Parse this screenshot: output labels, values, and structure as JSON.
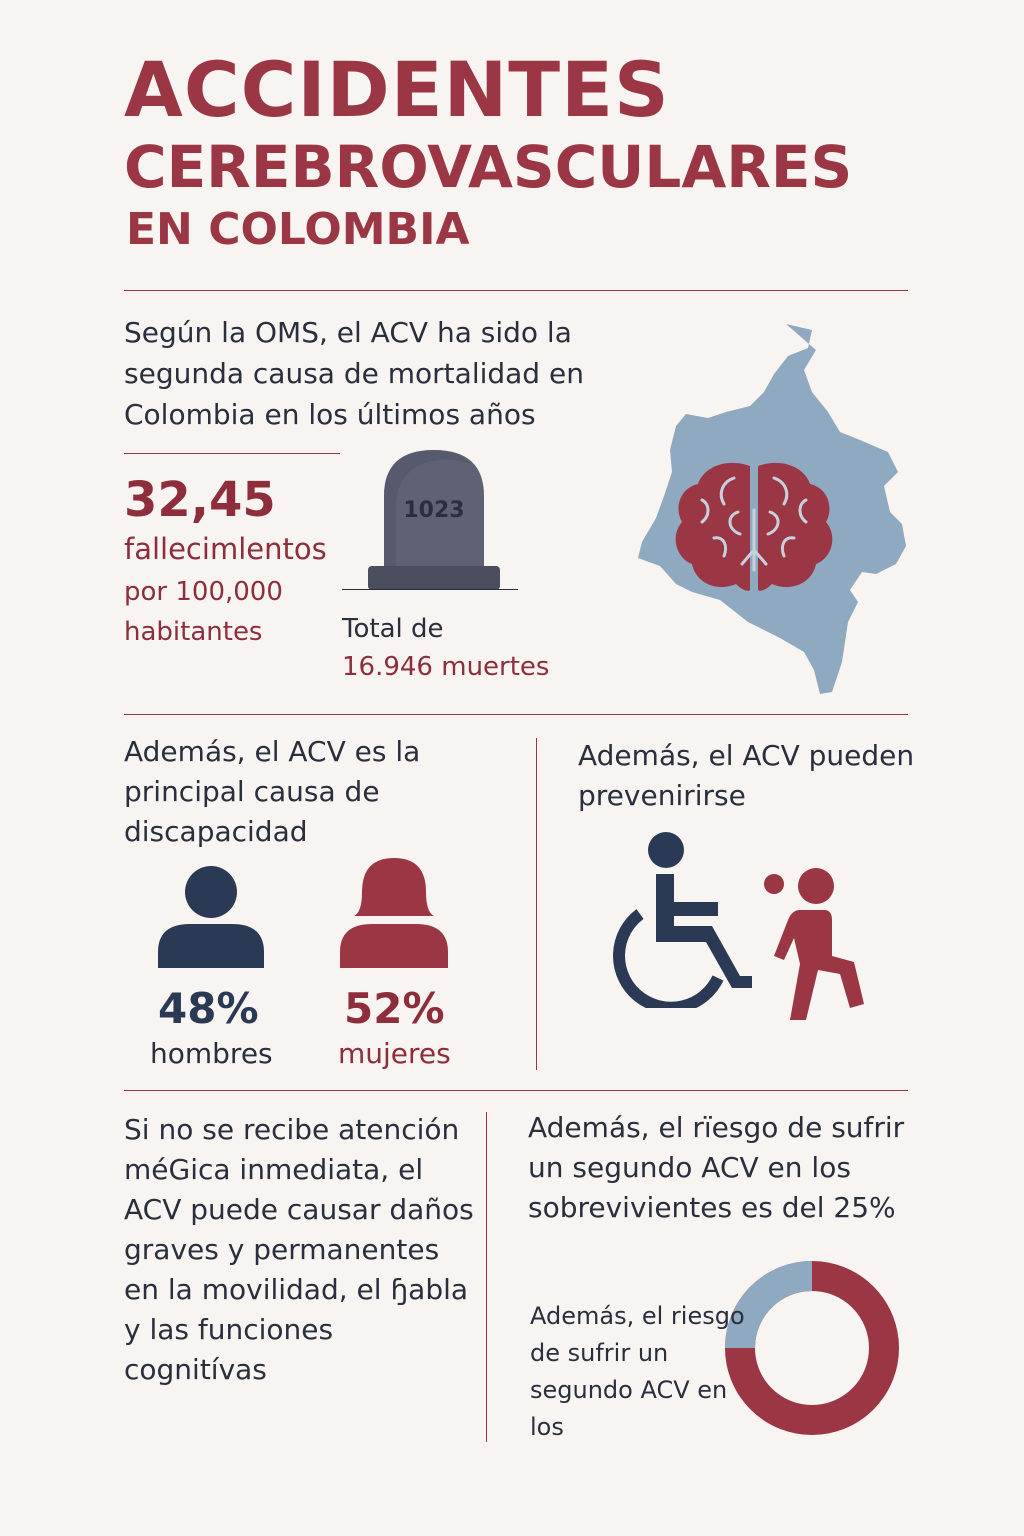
{
  "header": {
    "title_line1": "ACCIDENTES",
    "title_line2": "CEREBROVASCULARES",
    "title_line3": "EN COLOMBIA"
  },
  "mortality": {
    "lead_text": "Según la OMS, el ACV ha sido la segunda causa de mortalidad en Colombia en los últimos años",
    "rate_value": "32,45",
    "rate_unit": "fallecimlentos",
    "rate_per": "por 100,000 habitantes",
    "tombstone_number": "1023",
    "total_label": "Total de",
    "total_value": "16.946 muertes"
  },
  "disability": {
    "text": "Además, el ACV es la principal causa de discapacidad",
    "men_percent": "48%",
    "men_label": "hombres",
    "women_percent": "52%",
    "women_label": "mujeres"
  },
  "prevention": {
    "text": "Además, el ACV pueden prevenirirse"
  },
  "damage": {
    "text": "Si no se recibe atención méGica inmediata, el ACV puede causar daños graves y permanentes en la movilidad, el ɧabla y las funciones cognitívas"
  },
  "recurrence": {
    "text": "Además, el rïesgo de sufrir un segundo ACV en los sobrevivientes es del 25%",
    "donut_text": "Además, el riesgo de sufrir un segundo ACV en los",
    "risk_fraction": 0.25
  },
  "colors": {
    "accent": "#9b3744",
    "navy": "#2a3a55",
    "map_blue": "#8fa9c0",
    "tomb_gray": "#5f6274",
    "background": "#f8f4f1"
  },
  "icons": {
    "map": "colombia-map-icon",
    "brain": "brain-icon",
    "tombstone": "tombstone-icon",
    "man": "man-icon",
    "woman": "woman-icon",
    "wheelchair": "wheelchair-icon",
    "walking": "walking-person-icon"
  }
}
